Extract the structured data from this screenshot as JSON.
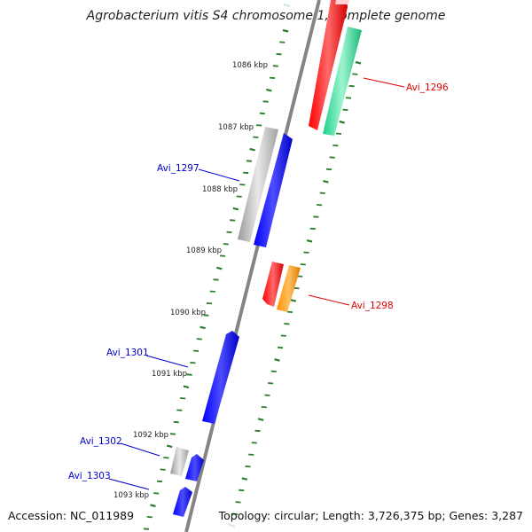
{
  "title": "Agrobacterium vitis S4 chromosome 1, complete genome",
  "footer": {
    "accession": "Accession: NC_011989",
    "topology": "Topology: circular; Length: 3,726,375 bp; Genes: 3,287"
  },
  "kbp_labels": [
    "1086 kbp",
    "1087 kbp",
    "1088 kbp",
    "1089 kbp",
    "1090 kbp",
    "1091 kbp",
    "1092 kbp",
    "1093 kbp"
  ],
  "gene_labels": [
    {
      "text": "Avi_1296",
      "color": "#e00000"
    },
    {
      "text": "Avi_1297",
      "color": "#0000cc"
    },
    {
      "text": "Avi_1298",
      "color": "#e00000"
    },
    {
      "text": "Avi_1301",
      "color": "#0000cc"
    },
    {
      "text": "Avi_1302",
      "color": "#0000cc"
    },
    {
      "text": "Avi_1303",
      "color": "#0000cc"
    }
  ],
  "colors": {
    "backbone": "#808080",
    "tick": "#2a7f2a",
    "feature_red": "#ff0000",
    "feature_blue": "#0000ff",
    "feature_green": "#33dd99",
    "feature_orange": "#ff9900",
    "feature_gray": "#b0b0b0"
  }
}
